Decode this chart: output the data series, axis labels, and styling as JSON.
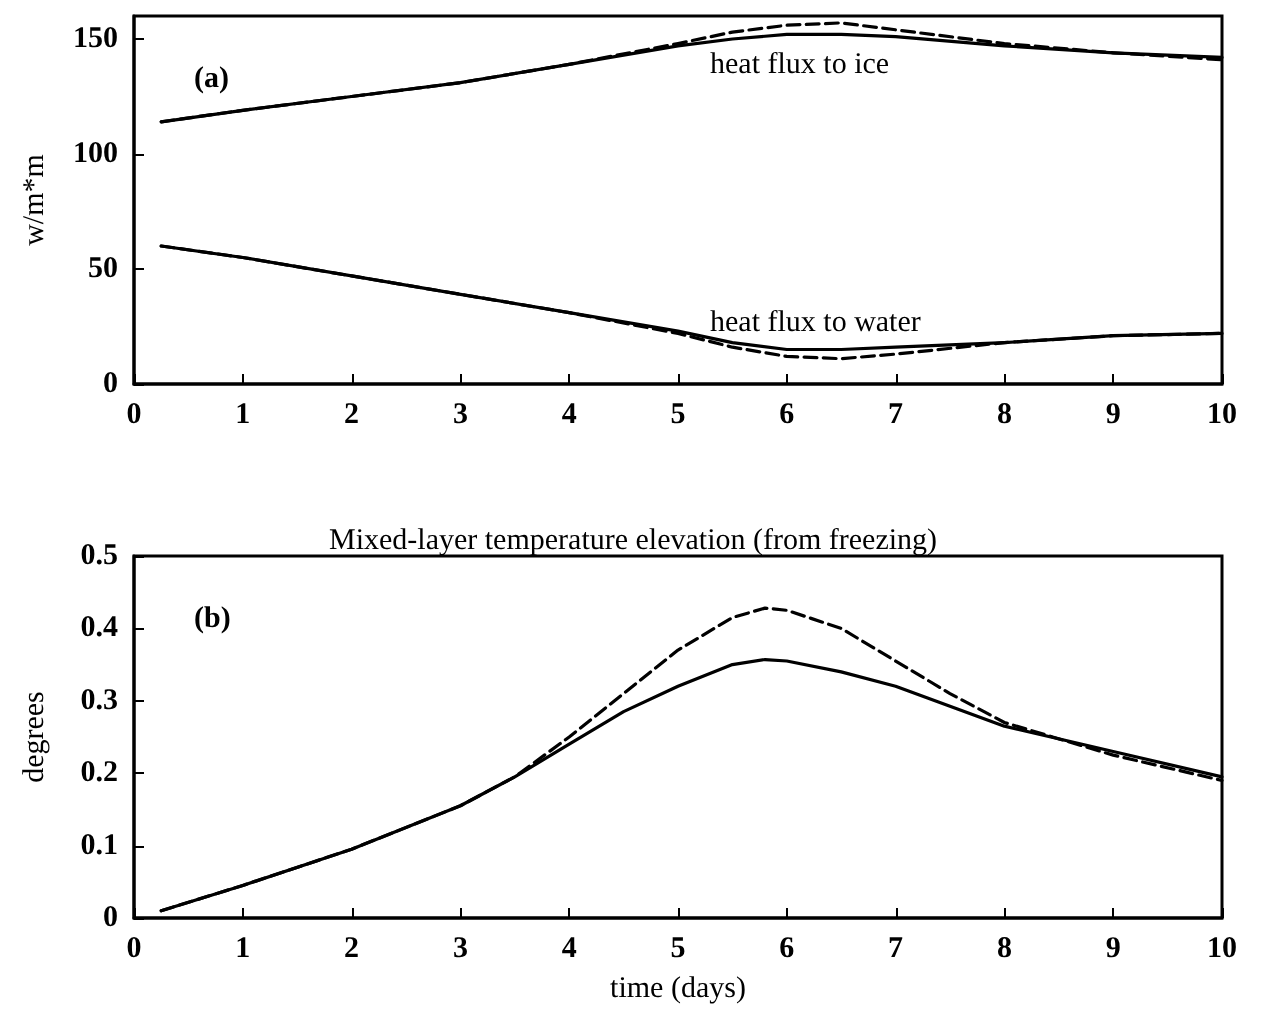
{
  "chart_data": [
    {
      "type": "line",
      "ylabel": "w/m*m",
      "xlim": [
        0,
        10
      ],
      "xticks": [
        0,
        1,
        2,
        3,
        4,
        5,
        6,
        7,
        8,
        9,
        10
      ],
      "ylim": [
        0,
        160
      ],
      "yticks": [
        0,
        50,
        100,
        150
      ],
      "marker": "none",
      "annotations": [
        "(a)",
        "heat flux to ice",
        "heat flux to water"
      ],
      "series": [
        {
          "color": "#000000",
          "line_style": "solid",
          "x": [
            0.25,
            1,
            2,
            3,
            4,
            5,
            5.5,
            6,
            6.5,
            7,
            8,
            9,
            10
          ],
          "values": [
            114,
            119,
            125,
            131,
            139,
            147,
            150,
            152,
            152,
            151,
            147,
            144,
            142
          ]
        },
        {
          "color": "#000000",
          "line_style": "dashed",
          "x": [
            0.25,
            1,
            2,
            3,
            4,
            5,
            5.5,
            6,
            6.5,
            7,
            8,
            9,
            10
          ],
          "values": [
            114,
            119,
            125,
            131,
            139,
            148,
            153,
            156,
            157,
            154,
            148,
            144,
            141
          ]
        },
        {
          "color": "#000000",
          "line_style": "solid",
          "x": [
            0.25,
            1,
            2,
            3,
            4,
            5,
            5.5,
            6,
            6.5,
            7,
            8,
            9,
            10
          ],
          "values": [
            60,
            55,
            47,
            39,
            31,
            23,
            18,
            15,
            15,
            16,
            18,
            21,
            22
          ]
        },
        {
          "color": "#000000",
          "line_style": "dashed",
          "x": [
            0.25,
            1,
            2,
            3,
            4,
            5,
            5.5,
            6,
            6.5,
            7,
            8,
            9,
            10
          ],
          "values": [
            60,
            55,
            47,
            39,
            31,
            22,
            16,
            12,
            11,
            13,
            18,
            21,
            22
          ]
        }
      ]
    },
    {
      "type": "line",
      "title": "Mixed-layer temperature elevation (from freezing)",
      "xlabel": "time (days)",
      "ylabel": "degrees",
      "xlim": [
        0,
        10
      ],
      "xticks": [
        0,
        1,
        2,
        3,
        4,
        5,
        6,
        7,
        8,
        9,
        10
      ],
      "ylim": [
        0,
        0.5
      ],
      "yticks": [
        0,
        0.1,
        0.2,
        0.3,
        0.4,
        0.5
      ],
      "marker": "none",
      "annotations": [
        "(b)"
      ],
      "series": [
        {
          "color": "#000000",
          "line_style": "solid",
          "x": [
            0.25,
            1,
            2,
            3,
            3.5,
            4,
            4.5,
            5,
            5.5,
            5.8,
            6,
            6.5,
            7,
            8,
            9,
            10
          ],
          "values": [
            0.01,
            0.045,
            0.095,
            0.155,
            0.195,
            0.24,
            0.285,
            0.32,
            0.35,
            0.357,
            0.355,
            0.34,
            0.32,
            0.265,
            0.23,
            0.195
          ]
        },
        {
          "color": "#000000",
          "line_style": "dashed",
          "x": [
            0.25,
            1,
            2,
            3,
            3.5,
            4,
            4.5,
            5,
            5.5,
            5.8,
            6,
            6.5,
            7,
            7.5,
            8,
            9,
            10
          ],
          "values": [
            0.01,
            0.045,
            0.095,
            0.155,
            0.195,
            0.25,
            0.31,
            0.37,
            0.415,
            0.428,
            0.425,
            0.4,
            0.355,
            0.31,
            0.27,
            0.225,
            0.19
          ]
        }
      ]
    }
  ]
}
